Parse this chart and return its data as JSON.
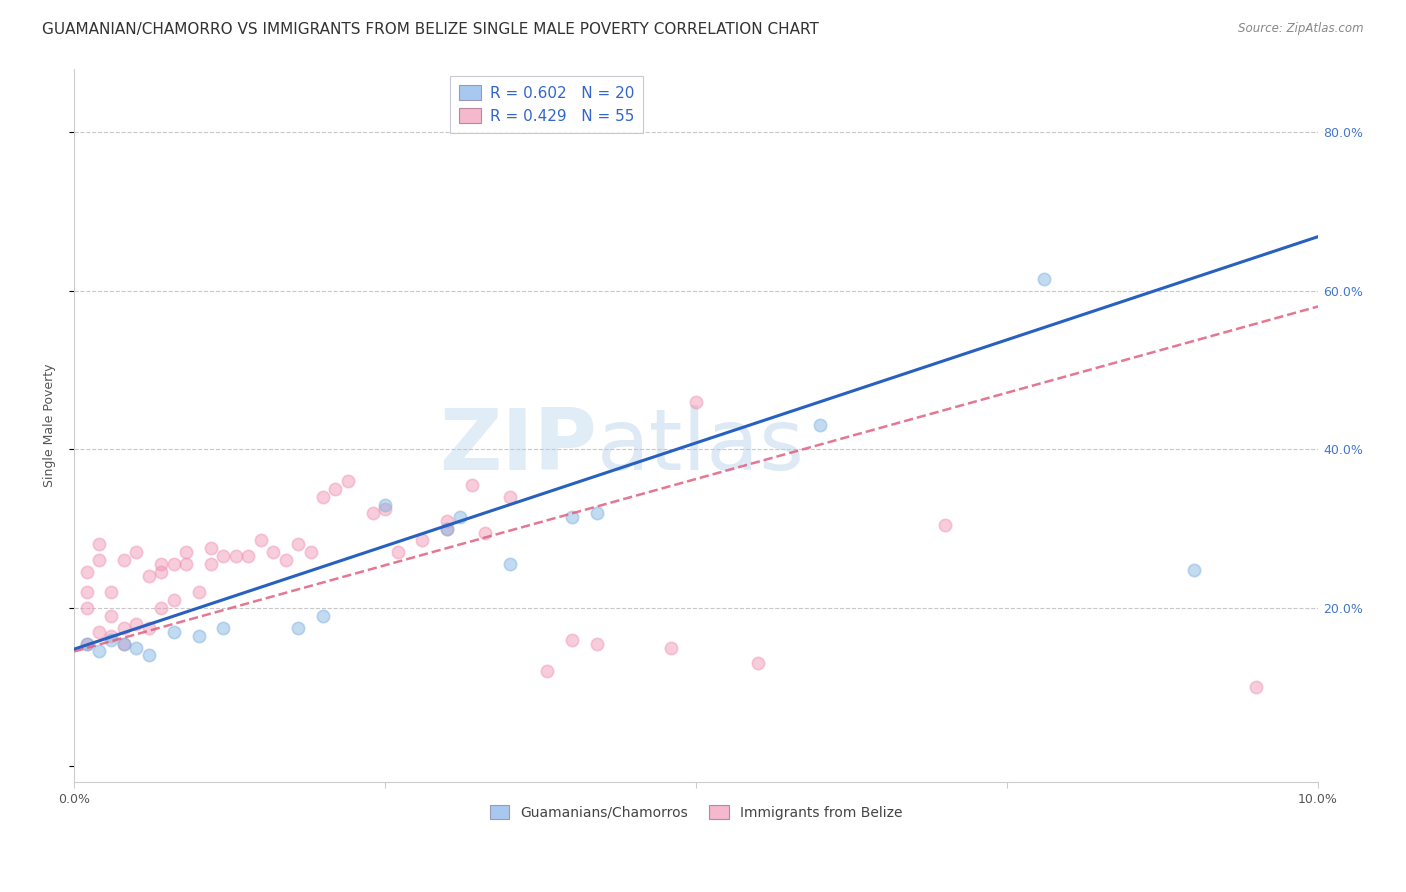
{
  "title": "GUAMANIAN/CHAMORRO VS IMMIGRANTS FROM BELIZE SINGLE MALE POVERTY CORRELATION CHART",
  "source": "Source: ZipAtlas.com",
  "ylabel": "Single Male Poverty",
  "y_ticks": [
    0.0,
    0.2,
    0.4,
    0.6,
    0.8
  ],
  "y_tick_labels_right": [
    "",
    "20.0%",
    "40.0%",
    "60.0%",
    "80.0%"
  ],
  "xlim": [
    0.0,
    0.1
  ],
  "ylim": [
    -0.02,
    0.88
  ],
  "legend_entries": [
    {
      "label": "R = 0.602   N = 20",
      "color": "#a8c8f0"
    },
    {
      "label": "R = 0.429   N = 55",
      "color": "#f5b8cc"
    }
  ],
  "legend_bottom": [
    {
      "label": "Guamanians/Chamorros",
      "color": "#a8c8f0"
    },
    {
      "label": "Immigrants from Belize",
      "color": "#f5b8cc"
    }
  ],
  "blue_color": "#7ab0e0",
  "pink_color": "#f090b0",
  "blue_line_color": "#2860c0",
  "pink_line_color": "#e06080",
  "watermark_zip": "ZIP",
  "watermark_atlas": "atlas",
  "blue_points_x": [
    0.001,
    0.002,
    0.003,
    0.004,
    0.005,
    0.006,
    0.008,
    0.01,
    0.012,
    0.018,
    0.02,
    0.025,
    0.03,
    0.031,
    0.035,
    0.04,
    0.042,
    0.06,
    0.078,
    0.09
  ],
  "blue_points_y": [
    0.155,
    0.145,
    0.16,
    0.155,
    0.15,
    0.14,
    0.17,
    0.165,
    0.175,
    0.175,
    0.19,
    0.33,
    0.3,
    0.315,
    0.255,
    0.315,
    0.32,
    0.43,
    0.615,
    0.248
  ],
  "pink_points_x": [
    0.001,
    0.001,
    0.001,
    0.001,
    0.002,
    0.002,
    0.002,
    0.003,
    0.003,
    0.003,
    0.004,
    0.004,
    0.004,
    0.005,
    0.005,
    0.006,
    0.006,
    0.007,
    0.007,
    0.007,
    0.008,
    0.008,
    0.009,
    0.009,
    0.01,
    0.011,
    0.011,
    0.012,
    0.013,
    0.014,
    0.015,
    0.016,
    0.017,
    0.018,
    0.019,
    0.02,
    0.021,
    0.022,
    0.024,
    0.025,
    0.026,
    0.028,
    0.03,
    0.03,
    0.032,
    0.033,
    0.035,
    0.038,
    0.04,
    0.042,
    0.048,
    0.05,
    0.055,
    0.07,
    0.095
  ],
  "pink_points_y": [
    0.155,
    0.2,
    0.22,
    0.245,
    0.28,
    0.26,
    0.17,
    0.165,
    0.19,
    0.22,
    0.155,
    0.175,
    0.26,
    0.27,
    0.18,
    0.175,
    0.24,
    0.2,
    0.245,
    0.255,
    0.255,
    0.21,
    0.27,
    0.255,
    0.22,
    0.255,
    0.275,
    0.265,
    0.265,
    0.265,
    0.285,
    0.27,
    0.26,
    0.28,
    0.27,
    0.34,
    0.35,
    0.36,
    0.32,
    0.325,
    0.27,
    0.285,
    0.3,
    0.31,
    0.355,
    0.295,
    0.34,
    0.12,
    0.16,
    0.155,
    0.15,
    0.46,
    0.13,
    0.305,
    0.1
  ],
  "marker_size": 80,
  "alpha": 0.45,
  "title_fontsize": 11,
  "axis_label_fontsize": 9,
  "tick_fontsize": 9,
  "legend_fontsize": 11,
  "blue_line_intercept": 0.148,
  "blue_line_slope": 5.2,
  "pink_line_intercept": 0.145,
  "pink_line_slope": 4.35
}
